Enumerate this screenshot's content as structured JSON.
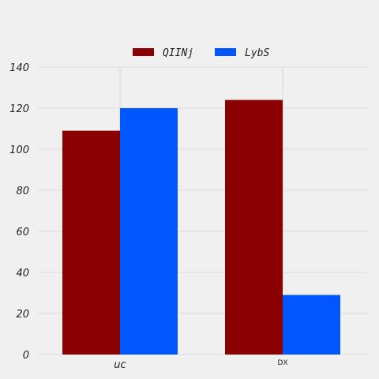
{
  "chart_data": {
    "type": "bar",
    "categories": [
      "uc",
      "DX"
    ],
    "series": [
      {
        "name": "QIINj",
        "values": [
          109,
          124
        ],
        "color": "#8b0000"
      },
      {
        "name": "LybS",
        "values": [
          120,
          29
        ],
        "color": "#0057ff"
      }
    ],
    "ylim": [
      0,
      140
    ],
    "yticks": [
      0,
      20,
      40,
      60,
      80,
      100,
      120,
      140
    ],
    "grid": true,
    "legend_position": "top-center",
    "background": "#f0f0f0",
    "grid_color": "#d4d4d4"
  }
}
